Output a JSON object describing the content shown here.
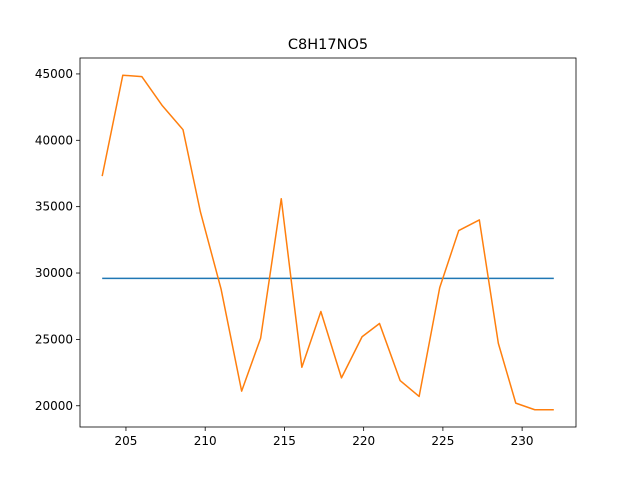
{
  "chart_data": {
    "type": "line",
    "title": "C8H17NO5",
    "xlabel": "",
    "ylabel": "",
    "xlim": [
      202.1,
      233.4
    ],
    "ylim": [
      18400,
      46200
    ],
    "x_ticks": [
      205,
      210,
      215,
      220,
      225,
      230
    ],
    "y_ticks": [
      20000,
      25000,
      30000,
      35000,
      40000,
      45000
    ],
    "grid": false,
    "legend": "none",
    "series": [
      {
        "color": "#1f77b4",
        "x": [
          203.5,
          232.0
        ],
        "y": [
          29600,
          29600
        ]
      },
      {
        "color": "#ff7f0e",
        "x": [
          203.5,
          204.8,
          206.0,
          207.3,
          208.6,
          209.7,
          211.0,
          212.3,
          213.5,
          214.8,
          216.1,
          217.3,
          218.6,
          219.9,
          221.0,
          222.3,
          223.5,
          224.8,
          226.0,
          227.3,
          228.5,
          229.6,
          230.8,
          232.0
        ],
        "y": [
          37300,
          44900,
          44800,
          42600,
          40800,
          34600,
          28800,
          21100,
          25100,
          35600,
          22900,
          27100,
          22100,
          25200,
          26200,
          21900,
          20700,
          28900,
          33200,
          34000,
          24700,
          20200,
          19700,
          19700
        ]
      }
    ]
  }
}
